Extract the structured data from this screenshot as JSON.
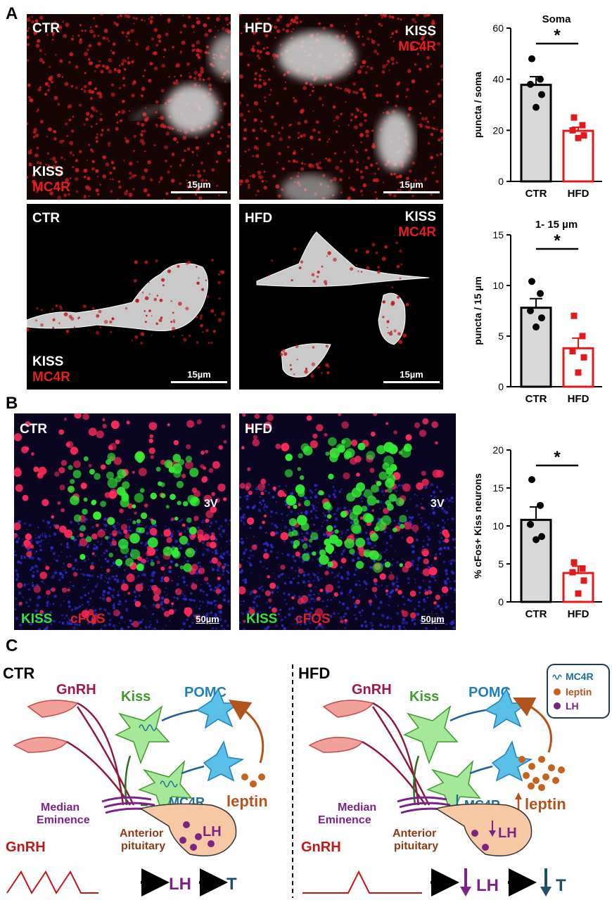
{
  "panels": {
    "a": "A",
    "b": "B",
    "c": "C"
  },
  "micrographs": {
    "a_ctr_top": {
      "cond": "CTR",
      "marker1": "KISS",
      "marker2": "MC4R",
      "scale": "15µm"
    },
    "a_hfd_top": {
      "cond": "HFD",
      "marker1": "KISS",
      "marker2": "MC4R",
      "scale": "15µm"
    },
    "a_ctr_bottom": {
      "cond": "CTR",
      "marker1": "KISS",
      "marker2": "MC4R",
      "scale": "15µm"
    },
    "a_hfd_bottom": {
      "cond": "HFD",
      "marker1": "KISS",
      "marker2": "MC4R",
      "scale": "15µm"
    },
    "b_ctr": {
      "cond": "CTR",
      "marker1": "KISS",
      "marker2": "cFOS",
      "scale": "50µm",
      "region": "3V"
    },
    "b_hfd": {
      "cond": "HFD",
      "marker1": "KISS",
      "marker2": "cFOS",
      "scale": "50µm",
      "region": "3V"
    }
  },
  "chart_data": [
    {
      "type": "bar",
      "title": "Soma",
      "ylabel": "puncta / soma",
      "categories": [
        "CTR",
        "HFD"
      ],
      "values": [
        37.8,
        19.8
      ],
      "sem": [
        3.2,
        1.4
      ],
      "points": [
        [
          48,
          40,
          38,
          34,
          29
        ],
        [
          25,
          22,
          20,
          18,
          17
        ]
      ],
      "ylim": [
        0,
        60
      ],
      "yticks": [
        0,
        20,
        40,
        60
      ],
      "significance": "*",
      "bar_colors": [
        "#000000",
        "#e31a1c"
      ]
    },
    {
      "type": "bar",
      "title": "1- 15 µm",
      "ylabel": "puncta / 15 µm",
      "categories": [
        "CTR",
        "HFD"
      ],
      "values": [
        7.8,
        3.8
      ],
      "sem": [
        0.9,
        1.0
      ],
      "points": [
        [
          10.4,
          9.2,
          7.5,
          6.8,
          5.9
        ],
        [
          7.0,
          5.0,
          3.5,
          2.9,
          1.4
        ]
      ],
      "ylim": [
        0,
        15
      ],
      "yticks": [
        0,
        5,
        10,
        15
      ],
      "significance": "*",
      "bar_colors": [
        "#000000",
        "#e31a1c"
      ]
    },
    {
      "type": "bar",
      "title": "",
      "ylabel": "% cFos+ Kiss neurons",
      "categories": [
        "CTR",
        "HFD"
      ],
      "values": [
        10.8,
        3.8
      ],
      "sem": [
        1.7,
        0.9
      ],
      "points": [
        [
          16.1,
          12.7,
          10.2,
          8.6,
          8.2
        ],
        [
          5.2,
          4.4,
          3.9,
          2.8,
          1.1
        ]
      ],
      "ylim": [
        0,
        20
      ],
      "yticks": [
        0,
        5,
        10,
        15,
        20
      ],
      "significance": "*",
      "bar_colors": [
        "#000000",
        "#e31a1c"
      ]
    }
  ],
  "schematic": {
    "left": {
      "title": "CTR",
      "gnrh": "GnRH",
      "kiss": "Kiss",
      "pomc": "POMC",
      "mc4r": "MC4R",
      "leptin": "leptin",
      "median1": "Median",
      "median2": "Eminence",
      "ant1": "Anterior",
      "ant2": "pituitary",
      "lh": "LH",
      "gnrh_pulse": "GnRH",
      "out_lh": "LH",
      "out_t": "T"
    },
    "right": {
      "title": "HFD",
      "gnrh": "GnRH",
      "kiss": "Kiss",
      "pomc": "POMC",
      "mc4r": "MC4R",
      "leptin": "leptin",
      "median1": "Median",
      "median2": "Eminence",
      "ant1": "Anterior",
      "ant2": "pituitary",
      "lh": "LH",
      "gnrh_pulse": "GnRH",
      "out_lh": "LH",
      "out_t": "T"
    },
    "legend": {
      "mc4r": "MC4R",
      "leptin": "leptin",
      "lh": "LH"
    },
    "colors": {
      "gnrh": "#a3154a",
      "kiss": "#3f9b2a",
      "pomc": "#1e7fc0",
      "mc4r": "#1a6f9a",
      "leptin": "#b2541c",
      "lh": "#7b2388",
      "median": "#7b2388",
      "pituitary": "#8a3c14",
      "t": "#1d4e6a",
      "pulse": "#c01818"
    }
  }
}
